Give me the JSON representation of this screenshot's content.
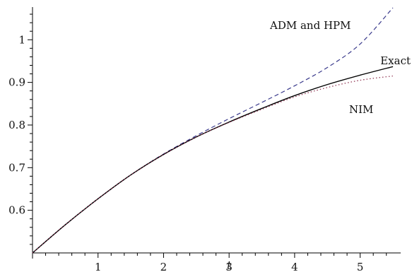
{
  "chart_data": {
    "type": "line",
    "xlabel": "t",
    "ylabel": "",
    "xlim": [
      0,
      5.5
    ],
    "ylim": [
      0.5,
      1.08
    ],
    "x_ticks": [
      1,
      2,
      3,
      4,
      5
    ],
    "y_ticks": [
      0.6,
      0.7,
      0.8,
      0.9,
      1
    ],
    "x_tick_labels": [
      "1",
      "2",
      "3",
      "4",
      "5"
    ],
    "y_tick_labels": [
      "0.6",
      "0.7",
      "0.8",
      "0.9",
      "1"
    ],
    "grid": false,
    "series": [
      {
        "name": "ADM and HPM",
        "style": "dashed",
        "color": "#3a3a8c",
        "x": [
          0,
          0.5,
          1,
          1.5,
          2,
          2.5,
          3,
          3.5,
          4,
          4.5,
          5,
          5.5
        ],
        "y": [
          0.5,
          0.566,
          0.627,
          0.683,
          0.732,
          0.775,
          0.815,
          0.853,
          0.892,
          0.935,
          0.99,
          1.075
        ]
      },
      {
        "name": "Exact",
        "style": "solid",
        "color": "#000000",
        "x": [
          0,
          0.5,
          1,
          1.5,
          2,
          2.5,
          3,
          3.5,
          4,
          4.5,
          5,
          5.5
        ],
        "y": [
          0.5,
          0.566,
          0.627,
          0.683,
          0.731,
          0.772,
          0.807,
          0.839,
          0.869,
          0.895,
          0.917,
          0.937
        ]
      },
      {
        "name": "NIM",
        "style": "dotted",
        "color": "#8b2a4a",
        "x": [
          0,
          0.5,
          1,
          1.5,
          2,
          2.5,
          3,
          3.5,
          4,
          4.5,
          5,
          5.5
        ],
        "y": [
          0.5,
          0.566,
          0.627,
          0.683,
          0.731,
          0.772,
          0.806,
          0.837,
          0.866,
          0.888,
          0.905,
          0.915
        ]
      }
    ]
  }
}
